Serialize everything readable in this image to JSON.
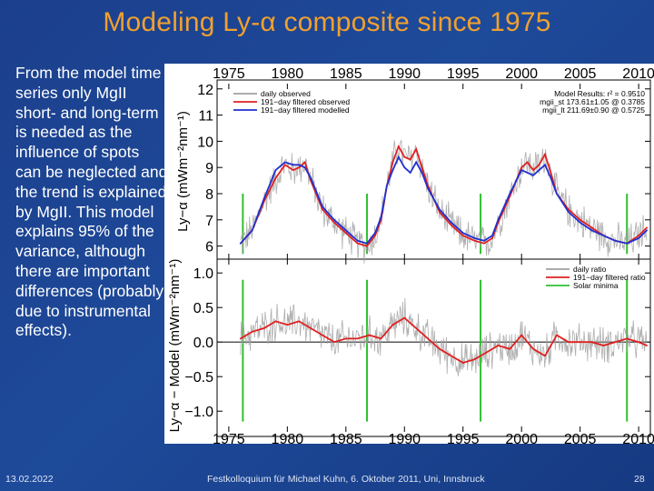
{
  "slide": {
    "title": "Modeling Ly-α composite since 1975",
    "body_text": "From the model time series only MgII short- and long-term is needed as the influence of spots can be neglected and the trend is explained by MgII. This model explains 95% of the variance, although there are important differences (probably due to instrumental effects).",
    "footer_date": "13.02.2022",
    "footer_center": "Festkolloquium für Michael Kuhn, 6. Oktober 2011, Uni, Innsbruck",
    "page_number": "28"
  },
  "chart_data": [
    {
      "type": "line",
      "ylabel": "Ly−α (mWm⁻²nm⁻¹)",
      "xlim": [
        1974,
        2011
      ],
      "ylim": [
        5.5,
        12.2
      ],
      "x_ticks": [
        1975,
        1980,
        1985,
        1990,
        1995,
        2000,
        2005,
        2010
      ],
      "y_ticks": [
        6,
        7,
        8,
        9,
        10,
        11,
        12
      ],
      "legend_position": "top-left",
      "legend": [
        "daily observed",
        "191−day filtered observed",
        "191−day filtered modelled"
      ],
      "annotation": [
        "Model Results: r² = 0.9510",
        "mgii_st 173.61±1.05 @ 0.3785",
        "mgii_lt 211.69±0.90 @ 0.5725"
      ],
      "series": [
        {
          "name": "191−day filtered observed",
          "color": "#e02020",
          "x": [
            1976.0,
            1977.0,
            1978.0,
            1979.0,
            1979.8,
            1980.5,
            1981.0,
            1981.5,
            1982.0,
            1983.0,
            1984.0,
            1985.0,
            1986.0,
            1986.8,
            1987.5,
            1988.0,
            1988.5,
            1989.0,
            1989.5,
            1990.0,
            1990.5,
            1991.0,
            1991.5,
            1992.0,
            1993.0,
            1994.0,
            1995.0,
            1996.0,
            1996.8,
            1997.5,
            1998.0,
            1999.0,
            2000.0,
            2000.5,
            2001.0,
            2001.5,
            2002.0,
            2002.5,
            2003.0,
            2004.0,
            2005.0,
            2006.0,
            2007.0,
            2008.0,
            2009.0,
            2010.0,
            2010.7
          ],
          "values": [
            6.1,
            6.6,
            7.7,
            8.6,
            9.1,
            8.9,
            9.0,
            9.2,
            8.5,
            7.4,
            6.9,
            6.5,
            6.1,
            6.0,
            6.4,
            7.0,
            8.3,
            9.2,
            9.8,
            9.4,
            9.3,
            9.7,
            9.0,
            8.3,
            7.3,
            6.8,
            6.4,
            6.2,
            6.1,
            6.3,
            6.9,
            7.9,
            9.0,
            9.2,
            8.9,
            9.1,
            9.5,
            8.8,
            8.0,
            7.4,
            7.0,
            6.7,
            6.4,
            6.2,
            6.1,
            6.4,
            6.7
          ]
        },
        {
          "name": "191−day filtered modelled",
          "color": "#2030d0",
          "x": [
            1976.0,
            1977.0,
            1978.0,
            1979.0,
            1979.8,
            1980.5,
            1981.0,
            1981.5,
            1982.0,
            1983.0,
            1984.0,
            1985.0,
            1986.0,
            1986.8,
            1987.5,
            1988.0,
            1988.5,
            1989.0,
            1989.5,
            1990.0,
            1990.5,
            1991.0,
            1991.5,
            1992.0,
            1993.0,
            1994.0,
            1995.0,
            1996.0,
            1996.8,
            1997.5,
            1998.0,
            1999.0,
            2000.0,
            2000.5,
            2001.0,
            2001.5,
            2002.0,
            2002.5,
            2003.0,
            2004.0,
            2005.0,
            2006.0,
            2007.0,
            2008.0,
            2009.0,
            2010.0,
            2010.7
          ],
          "values": [
            6.1,
            6.6,
            7.8,
            8.9,
            9.2,
            9.1,
            9.1,
            9.0,
            8.6,
            7.5,
            7.0,
            6.6,
            6.2,
            6.1,
            6.5,
            7.1,
            8.3,
            8.9,
            9.4,
            9.0,
            8.8,
            9.2,
            8.8,
            8.2,
            7.4,
            6.9,
            6.5,
            6.3,
            6.2,
            6.4,
            7.0,
            8.0,
            8.9,
            8.8,
            8.7,
            8.9,
            9.1,
            8.6,
            8.0,
            7.3,
            6.9,
            6.6,
            6.4,
            6.2,
            6.1,
            6.3,
            6.6
          ]
        }
      ],
      "vlines_x": [
        1976.2,
        1986.8,
        1996.5,
        2009.0
      ]
    },
    {
      "type": "line",
      "ylabel": "Ly−α − Model (mWm⁻²nm⁻¹)",
      "xlim": [
        1974,
        2011
      ],
      "ylim": [
        -1.3,
        1.2
      ],
      "x_ticks": [
        1975,
        1980,
        1985,
        1990,
        1995,
        2000,
        2005,
        2010
      ],
      "y_ticks": [
        -1.0,
        -0.5,
        0.0,
        0.5,
        1.0
      ],
      "legend_position": "top-right",
      "legend": [
        "daily ratio",
        "191−day filtered ratio",
        "Solar minima"
      ],
      "series": [
        {
          "name": "191−day filtered ratio",
          "color": "#e02020",
          "x": [
            1976.0,
            1977.0,
            1978.0,
            1979.0,
            1980.0,
            1981.0,
            1982.0,
            1983.0,
            1984.0,
            1985.0,
            1986.0,
            1987.0,
            1988.0,
            1989.0,
            1990.0,
            1991.0,
            1992.0,
            1993.0,
            1994.0,
            1995.0,
            1996.0,
            1997.0,
            1998.0,
            1999.0,
            2000.0,
            2001.0,
            2002.0,
            2003.0,
            2004.0,
            2005.0,
            2006.0,
            2007.0,
            2008.0,
            2009.0,
            2010.0,
            2010.7
          ],
          "values": [
            0.05,
            0.15,
            0.2,
            0.3,
            0.25,
            0.3,
            0.2,
            0.1,
            0.0,
            0.05,
            0.05,
            0.1,
            0.05,
            0.25,
            0.35,
            0.2,
            0.05,
            -0.1,
            -0.2,
            -0.3,
            -0.25,
            -0.15,
            -0.05,
            -0.1,
            0.1,
            -0.1,
            -0.2,
            0.1,
            0.0,
            0.0,
            0.0,
            -0.05,
            0.0,
            0.05,
            0.0,
            -0.05
          ]
        }
      ],
      "vlines_x": [
        1976.2,
        1986.8,
        1996.5,
        2009.0
      ]
    }
  ],
  "colors": {
    "daily": "#a0a0a0",
    "filtered_observed": "#e02020",
    "filtered_modelled": "#2030d0",
    "solar_minima": "#30c030",
    "title": "#f0a030"
  }
}
